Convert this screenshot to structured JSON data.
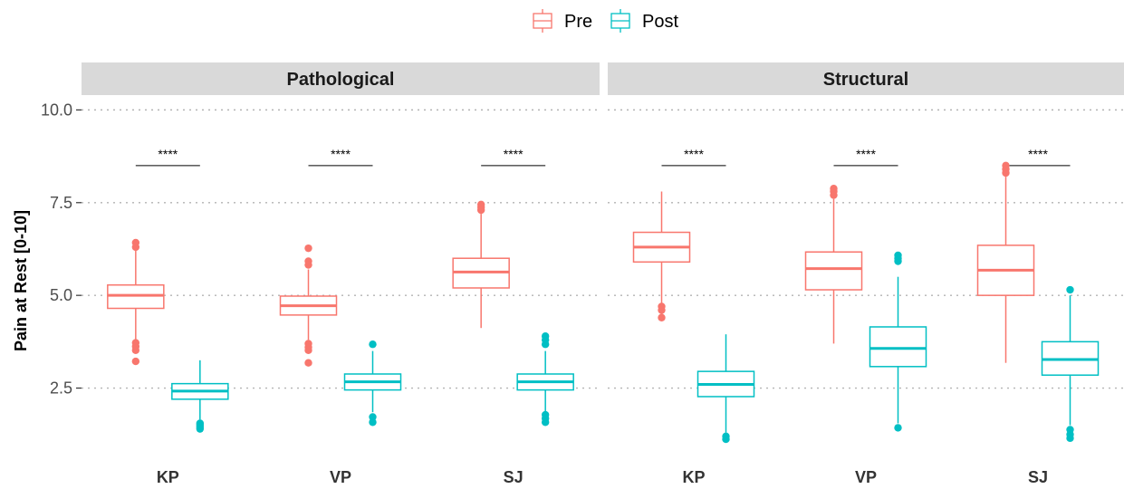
{
  "chart_data": {
    "type": "boxplot",
    "ylabel": "Pain at Rest [0-10]",
    "ylim": [
      1.0,
      10.4
    ],
    "yticks": [
      2.5,
      5.0,
      7.5,
      10.0
    ],
    "ytick_labels": [
      "2.5",
      "5.0",
      "7.5",
      "10.0"
    ],
    "grid": true,
    "legend": {
      "placement": "top-center",
      "entries": [
        {
          "name": "Pre",
          "color": "#F8766D"
        },
        {
          "name": "Post",
          "color": "#00BFC4"
        }
      ]
    },
    "panels": [
      {
        "title": "Pathological",
        "categories": [
          "KP",
          "VP",
          "SJ"
        ],
        "significance": [
          "****",
          "****",
          "****"
        ],
        "sig_y": 8.5,
        "series": [
          {
            "name": "Pre",
            "boxes": [
              {
                "whisker_low": 3.8,
                "q1": 4.65,
                "median": 5.0,
                "q3": 5.28,
                "whisker_high": 6.2,
                "outliers": [
                  6.42,
                  6.3,
                  3.72,
                  3.62,
                  3.52,
                  3.22
                ]
              },
              {
                "whisker_low": 3.8,
                "q1": 4.47,
                "median": 4.72,
                "q3": 4.98,
                "whisker_high": 5.7,
                "outliers": [
                  6.27,
                  5.92,
                  5.82,
                  3.7,
                  3.6,
                  3.52,
                  3.18
                ]
              },
              {
                "whisker_low": 4.12,
                "q1": 5.2,
                "median": 5.63,
                "q3": 6.0,
                "whisker_high": 7.2,
                "outliers": [
                  7.45,
                  7.38,
                  7.3
                ]
              }
            ]
          },
          {
            "name": "Post",
            "boxes": [
              {
                "whisker_low": 1.65,
                "q1": 2.2,
                "median": 2.42,
                "q3": 2.62,
                "whisker_high": 3.25,
                "outliers": [
                  1.55,
                  1.5,
                  1.45,
                  1.4
                ]
              },
              {
                "whisker_low": 1.85,
                "q1": 2.45,
                "median": 2.67,
                "q3": 2.88,
                "whisker_high": 3.5,
                "outliers": [
                  3.68,
                  1.72,
                  1.58
                ]
              },
              {
                "whisker_low": 1.85,
                "q1": 2.45,
                "median": 2.67,
                "q3": 2.88,
                "whisker_high": 3.5,
                "outliers": [
                  3.9,
                  3.8,
                  3.68,
                  1.78,
                  1.68,
                  1.58
                ]
              }
            ]
          }
        ]
      },
      {
        "title": "Structural",
        "categories": [
          "KP",
          "VP",
          "SJ"
        ],
        "significance": [
          "****",
          "****",
          "****"
        ],
        "sig_y": 8.5,
        "series": [
          {
            "name": "Pre",
            "boxes": [
              {
                "whisker_low": 4.75,
                "q1": 5.9,
                "median": 6.3,
                "q3": 6.7,
                "whisker_high": 7.8,
                "outliers": [
                  4.7,
                  4.6,
                  4.4
                ]
              },
              {
                "whisker_low": 3.7,
                "q1": 5.15,
                "median": 5.72,
                "q3": 6.17,
                "whisker_high": 7.6,
                "outliers": [
                  7.88,
                  7.8,
                  7.7
                ]
              },
              {
                "whisker_low": 3.18,
                "q1": 5.0,
                "median": 5.68,
                "q3": 6.35,
                "whisker_high": 8.2,
                "outliers": [
                  8.5,
                  8.4,
                  8.3
                ]
              }
            ]
          },
          {
            "name": "Post",
            "boxes": [
              {
                "whisker_low": 1.3,
                "q1": 2.27,
                "median": 2.6,
                "q3": 2.95,
                "whisker_high": 3.95,
                "outliers": [
                  1.2,
                  1.12
                ]
              },
              {
                "whisker_low": 1.55,
                "q1": 3.08,
                "median": 3.57,
                "q3": 4.15,
                "whisker_high": 5.5,
                "outliers": [
                  6.08,
                  6.0,
                  5.92,
                  1.43
                ]
              },
              {
                "whisker_low": 1.5,
                "q1": 2.85,
                "median": 3.27,
                "q3": 3.75,
                "whisker_high": 5.0,
                "outliers": [
                  5.15,
                  1.38,
                  1.25,
                  1.15
                ]
              }
            ]
          }
        ]
      }
    ]
  }
}
